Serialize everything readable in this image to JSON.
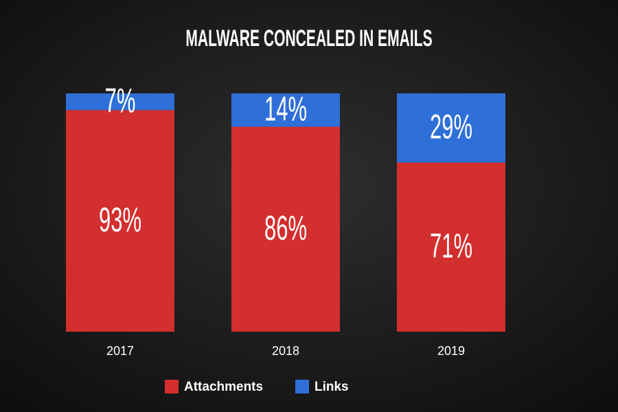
{
  "chart_data": {
    "type": "bar",
    "stacked": true,
    "title": "MALWARE CONCEALED IN EMAILS",
    "categories": [
      "2017",
      "2018",
      "2019"
    ],
    "series": [
      {
        "name": "Attachments",
        "color": "#d32f2f",
        "values": [
          93,
          86,
          71
        ],
        "value_labels": [
          "93%",
          "86%",
          "71%"
        ]
      },
      {
        "name": "Links",
        "color": "#2f6fd8",
        "values": [
          7,
          14,
          29
        ],
        "value_labels": [
          "7%",
          "14%",
          "29%"
        ]
      }
    ],
    "ylim": [
      0,
      100
    ],
    "legend": "bottom"
  }
}
